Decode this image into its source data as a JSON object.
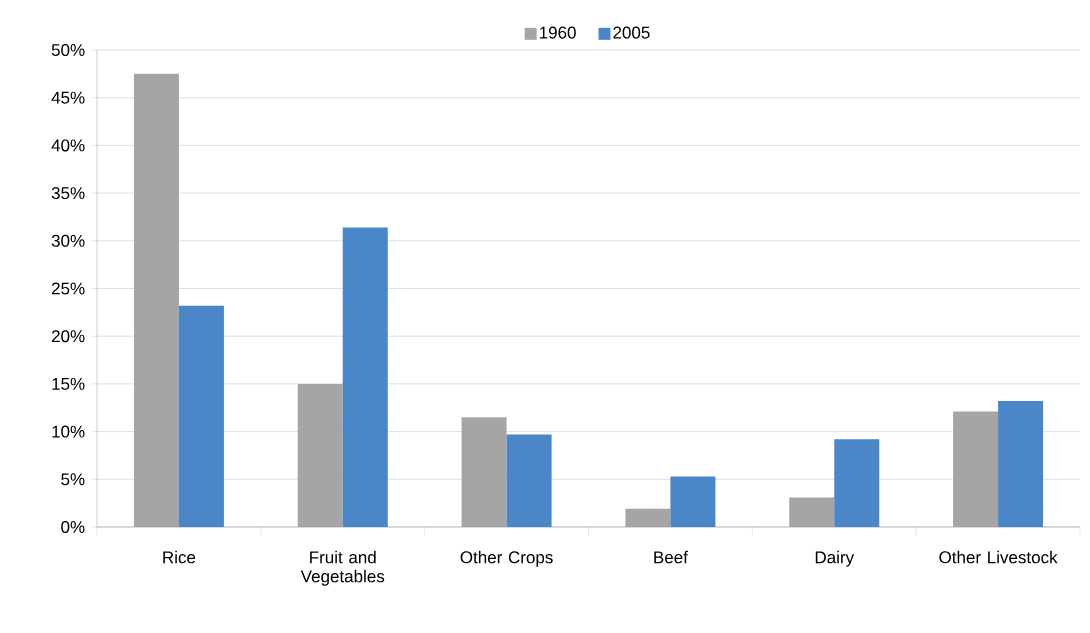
{
  "chart_data": {
    "type": "bar",
    "categories": [
      "Rice",
      "Fruit and Vegetables",
      "Other Crops",
      "Beef",
      "Dairy",
      "Other Livestock"
    ],
    "series": [
      {
        "name": "1960",
        "color": "#a5a5a5",
        "values": [
          47.5,
          15.0,
          11.5,
          1.9,
          3.1,
          12.1
        ]
      },
      {
        "name": "2005",
        "color": "#4a86c8",
        "values": [
          23.2,
          31.4,
          9.7,
          5.3,
          9.2,
          13.2
        ]
      }
    ],
    "ylim": [
      0,
      50
    ],
    "yticks": [
      {
        "value": 0,
        "label": "0%"
      },
      {
        "value": 5,
        "label": "5%"
      },
      {
        "value": 10,
        "label": "10%"
      },
      {
        "value": 15,
        "label": "15%"
      },
      {
        "value": 20,
        "label": "20%"
      },
      {
        "value": 25,
        "label": "25%"
      },
      {
        "value": 30,
        "label": "30%"
      },
      {
        "value": 35,
        "label": "35%"
      },
      {
        "value": 40,
        "label": "40%"
      },
      {
        "value": 45,
        "label": "45%"
      },
      {
        "value": 50,
        "label": "50%"
      }
    ],
    "grid": "y",
    "legend": "top"
  }
}
